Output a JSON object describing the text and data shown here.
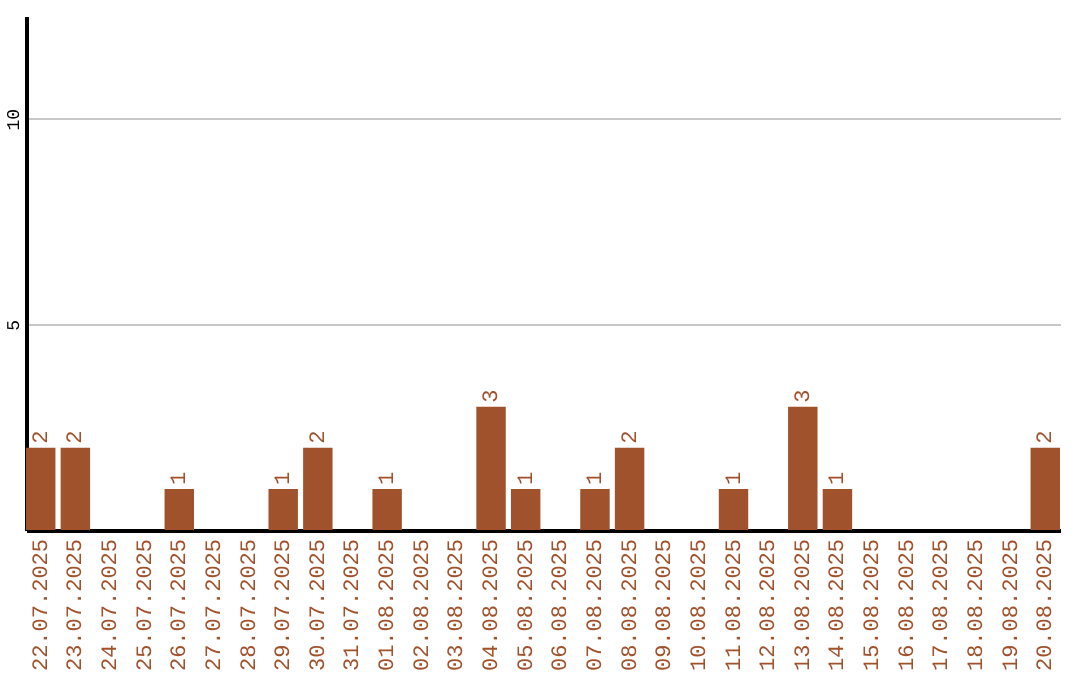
{
  "chart_data": {
    "type": "bar",
    "categories": [
      "22.07.2025",
      "23.07.2025",
      "24.07.2025",
      "25.07.2025",
      "26.07.2025",
      "27.07.2025",
      "28.07.2025",
      "29.07.2025",
      "30.07.2025",
      "31.07.2025",
      "01.08.2025",
      "02.08.2025",
      "03.08.2025",
      "04.08.2025",
      "05.08.2025",
      "06.08.2025",
      "07.08.2025",
      "08.08.2025",
      "09.08.2025",
      "10.08.2025",
      "11.08.2025",
      "12.08.2025",
      "13.08.2025",
      "14.08.2025",
      "15.08.2025",
      "16.08.2025",
      "17.08.2025",
      "18.08.2025",
      "19.08.2025",
      "20.08.2025"
    ],
    "values": [
      2,
      2,
      0,
      0,
      1,
      0,
      0,
      1,
      2,
      0,
      1,
      0,
      0,
      3,
      1,
      0,
      1,
      2,
      0,
      0,
      1,
      0,
      3,
      1,
      0,
      0,
      0,
      0,
      0,
      2
    ],
    "value_labels": [
      "2",
      "2",
      null,
      null,
      "1",
      null,
      null,
      "1",
      "2",
      null,
      "1",
      null,
      null,
      "3",
      "1",
      null,
      "1",
      "2",
      null,
      null,
      "1",
      null,
      "3",
      "1",
      null,
      null,
      null,
      null,
      null,
      "2"
    ],
    "color": "#a0522d",
    "ylim": [
      0,
      12.5
    ],
    "yticks": [
      5,
      10
    ],
    "grid": "y"
  }
}
